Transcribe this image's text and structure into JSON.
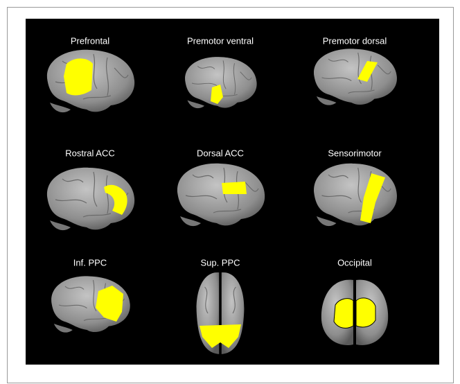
{
  "panels": [
    {
      "label": "Prefrontal"
    },
    {
      "label": "Premotor ventral"
    },
    {
      "label": "Premotor dorsal"
    },
    {
      "label": "Rostral ACC"
    },
    {
      "label": "Dorsal ACC"
    },
    {
      "label": "Sensorimotor"
    },
    {
      "label": "Inf. PPC"
    },
    {
      "label": "Sup. PPC"
    },
    {
      "label": "Occipital"
    }
  ]
}
